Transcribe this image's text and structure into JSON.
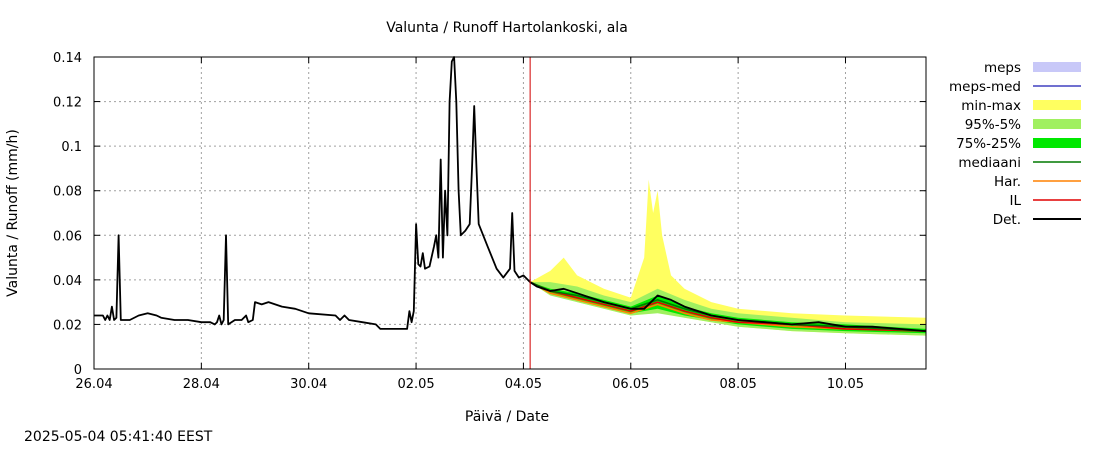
{
  "chart_data": {
    "type": "line",
    "title": "Valunta / Runoff  Hartolankoski, ala",
    "xlabel": "Päivä / Date",
    "ylabel": "Valunta / Runoff (mm/h)",
    "xlim": [
      "2025-04-26T00:00",
      "2025-05-11T12:00"
    ],
    "ylim": [
      0,
      0.14
    ],
    "grid": true,
    "legend_position": "right",
    "x_tick_labels": [
      "26.04",
      "28.04",
      "30.04",
      "02.05",
      "04.05",
      "06.05",
      "08.05",
      "10.05"
    ],
    "x_ticks": [
      "2025-04-26T00:00",
      "2025-04-28T00:00",
      "2025-04-30T00:00",
      "2025-05-02T00:00",
      "2025-05-04T00:00",
      "2025-05-06T00:00",
      "2025-05-08T00:00",
      "2025-05-10T00:00"
    ],
    "y_tick_labels": [
      "0",
      "0.02",
      "0.04",
      "0.06",
      "0.08",
      "0.1",
      "0.12",
      "0.14"
    ],
    "y_ticks": [
      0,
      0.02,
      0.04,
      0.06,
      0.08,
      0.1,
      0.12,
      0.14
    ],
    "forecast_start": "2025-05-04T03:00",
    "legend": [
      {
        "label": "meps",
        "style": "band",
        "color": "#c8c8f8"
      },
      {
        "label": "meps-med",
        "style": "line",
        "color": "#4040c0"
      },
      {
        "label": "min-max",
        "style": "band",
        "color": "#ffff60"
      },
      {
        "label": "95%-5%",
        "style": "band",
        "color": "#a0f060"
      },
      {
        "label": "75%-25%",
        "style": "band",
        "color": "#00e800"
      },
      {
        "label": "mediaani",
        "style": "line",
        "color": "#007800"
      },
      {
        "label": "Har.",
        "style": "line",
        "color": "#ff8000"
      },
      {
        "label": "IL",
        "style": "line",
        "color": "#e00000"
      },
      {
        "label": "Det.",
        "style": "line",
        "color": "#000000"
      }
    ],
    "series": [
      {
        "name": "Det.",
        "color": "#000000",
        "points": [
          [
            "2025-04-26T00:00",
            0.024
          ],
          [
            "2025-04-26T04:00",
            0.024
          ],
          [
            "2025-04-26T05:00",
            0.022
          ],
          [
            "2025-04-26T06:00",
            0.024
          ],
          [
            "2025-04-26T07:00",
            0.022
          ],
          [
            "2025-04-26T08:00",
            0.028
          ],
          [
            "2025-04-26T09:00",
            0.022
          ],
          [
            "2025-04-26T10:00",
            0.023
          ],
          [
            "2025-04-26T11:00",
            0.06
          ],
          [
            "2025-04-26T12:00",
            0.022
          ],
          [
            "2025-04-26T16:00",
            0.022
          ],
          [
            "2025-04-26T20:00",
            0.024
          ],
          [
            "2025-04-27T00:00",
            0.025
          ],
          [
            "2025-04-27T04:00",
            0.024
          ],
          [
            "2025-04-27T06:00",
            0.023
          ],
          [
            "2025-04-27T12:00",
            0.022
          ],
          [
            "2025-04-27T18:00",
            0.022
          ],
          [
            "2025-04-28T00:00",
            0.021
          ],
          [
            "2025-04-28T04:00",
            0.021
          ],
          [
            "2025-04-28T06:00",
            0.02
          ],
          [
            "2025-04-28T07:00",
            0.021
          ],
          [
            "2025-04-28T08:00",
            0.024
          ],
          [
            "2025-04-28T09:00",
            0.02
          ],
          [
            "2025-04-28T10:00",
            0.022
          ],
          [
            "2025-04-28T11:00",
            0.06
          ],
          [
            "2025-04-28T12:00",
            0.02
          ],
          [
            "2025-04-28T15:00",
            0.022
          ],
          [
            "2025-04-28T18:00",
            0.022
          ],
          [
            "2025-04-28T20:00",
            0.024
          ],
          [
            "2025-04-28T21:00",
            0.021
          ],
          [
            "2025-04-28T23:00",
            0.022
          ],
          [
            "2025-04-29T00:00",
            0.03
          ],
          [
            "2025-04-29T03:00",
            0.029
          ],
          [
            "2025-04-29T06:00",
            0.03
          ],
          [
            "2025-04-29T12:00",
            0.028
          ],
          [
            "2025-04-29T18:00",
            0.027
          ],
          [
            "2025-04-30T00:00",
            0.025
          ],
          [
            "2025-04-30T12:00",
            0.024
          ],
          [
            "2025-04-30T14:00",
            0.022
          ],
          [
            "2025-04-30T16:00",
            0.024
          ],
          [
            "2025-04-30T18:00",
            0.022
          ],
          [
            "2025-05-01T00:00",
            0.021
          ],
          [
            "2025-05-01T06:00",
            0.02
          ],
          [
            "2025-05-01T08:00",
            0.018
          ],
          [
            "2025-05-01T12:00",
            0.018
          ],
          [
            "2025-05-01T20:00",
            0.018
          ],
          [
            "2025-05-01T21:00",
            0.026
          ],
          [
            "2025-05-01T22:00",
            0.021
          ],
          [
            "2025-05-01T23:00",
            0.026
          ],
          [
            "2025-05-02T00:00",
            0.065
          ],
          [
            "2025-05-02T01:00",
            0.047
          ],
          [
            "2025-05-02T02:00",
            0.046
          ],
          [
            "2025-05-02T03:00",
            0.052
          ],
          [
            "2025-05-02T04:00",
            0.045
          ],
          [
            "2025-05-02T06:00",
            0.046
          ],
          [
            "2025-05-02T08:00",
            0.055
          ],
          [
            "2025-05-02T09:00",
            0.06
          ],
          [
            "2025-05-02T10:00",
            0.05
          ],
          [
            "2025-05-02T11:00",
            0.094
          ],
          [
            "2025-05-02T12:00",
            0.05
          ],
          [
            "2025-05-02T13:00",
            0.08
          ],
          [
            "2025-05-02T14:00",
            0.06
          ],
          [
            "2025-05-02T15:00",
            0.12
          ],
          [
            "2025-05-02T16:00",
            0.138
          ],
          [
            "2025-05-02T17:00",
            0.14
          ],
          [
            "2025-05-02T18:00",
            0.12
          ],
          [
            "2025-05-02T19:00",
            0.08
          ],
          [
            "2025-05-02T20:00",
            0.06
          ],
          [
            "2025-05-02T22:00",
            0.062
          ],
          [
            "2025-05-03T00:00",
            0.065
          ],
          [
            "2025-05-03T01:00",
            0.09
          ],
          [
            "2025-05-03T02:00",
            0.118
          ],
          [
            "2025-05-03T03:00",
            0.09
          ],
          [
            "2025-05-03T04:00",
            0.065
          ],
          [
            "2025-05-03T08:00",
            0.055
          ],
          [
            "2025-05-03T12:00",
            0.045
          ],
          [
            "2025-05-03T15:00",
            0.041
          ],
          [
            "2025-05-03T18:00",
            0.045
          ],
          [
            "2025-05-03T19:00",
            0.07
          ],
          [
            "2025-05-03T20:00",
            0.044
          ],
          [
            "2025-05-03T22:00",
            0.041
          ],
          [
            "2025-05-04T00:00",
            0.042
          ],
          [
            "2025-05-04T03:00",
            0.039
          ],
          [
            "2025-05-04T06:00",
            0.037
          ],
          [
            "2025-05-04T12:00",
            0.035
          ],
          [
            "2025-05-04T18:00",
            0.036
          ],
          [
            "2025-05-05T00:00",
            0.034
          ],
          [
            "2025-05-05T12:00",
            0.03
          ],
          [
            "2025-05-06T00:00",
            0.027
          ],
          [
            "2025-05-06T06:00",
            0.027
          ],
          [
            "2025-05-06T12:00",
            0.033
          ],
          [
            "2025-05-06T18:00",
            0.031
          ],
          [
            "2025-05-07T00:00",
            0.028
          ],
          [
            "2025-05-07T12:00",
            0.024
          ],
          [
            "2025-05-08T00:00",
            0.022
          ],
          [
            "2025-05-08T12:00",
            0.021
          ],
          [
            "2025-05-09T00:00",
            0.02
          ],
          [
            "2025-05-09T12:00",
            0.021
          ],
          [
            "2025-05-10T00:00",
            0.019
          ],
          [
            "2025-05-10T12:00",
            0.019
          ],
          [
            "2025-05-11T00:00",
            0.018
          ],
          [
            "2025-05-11T12:00",
            0.017
          ]
        ]
      },
      {
        "name": "Har.",
        "color": "#ff8000",
        "points": [
          [
            "2025-05-04T03:00",
            0.039
          ],
          [
            "2025-05-04T12:00",
            0.034
          ],
          [
            "2025-05-05T00:00",
            0.031
          ],
          [
            "2025-05-05T12:00",
            0.028
          ],
          [
            "2025-05-06T00:00",
            0.025
          ],
          [
            "2025-05-06T12:00",
            0.029
          ],
          [
            "2025-05-07T00:00",
            0.025
          ],
          [
            "2025-05-07T12:00",
            0.022
          ],
          [
            "2025-05-08T00:00",
            0.021
          ],
          [
            "2025-05-09T00:00",
            0.019
          ],
          [
            "2025-05-10T00:00",
            0.018
          ],
          [
            "2025-05-11T12:00",
            0.017
          ]
        ]
      },
      {
        "name": "IL",
        "color": "#e00000",
        "points": [
          [
            "2025-05-04T03:00",
            0.039
          ],
          [
            "2025-05-04T12:00",
            0.035
          ],
          [
            "2025-05-05T00:00",
            0.032
          ],
          [
            "2025-05-05T12:00",
            0.029
          ],
          [
            "2025-05-06T00:00",
            0.026
          ],
          [
            "2025-05-06T12:00",
            0.03
          ],
          [
            "2025-05-07T00:00",
            0.026
          ],
          [
            "2025-05-07T12:00",
            0.023
          ],
          [
            "2025-05-08T00:00",
            0.021
          ],
          [
            "2025-05-09T00:00",
            0.02
          ],
          [
            "2025-05-10T00:00",
            0.018
          ],
          [
            "2025-05-11T12:00",
            0.017
          ]
        ]
      },
      {
        "name": "mediaani",
        "color": "#007800",
        "points": [
          [
            "2025-05-04T03:00",
            0.039
          ],
          [
            "2025-05-04T12:00",
            0.035
          ],
          [
            "2025-05-05T00:00",
            0.033
          ],
          [
            "2025-05-05T12:00",
            0.03
          ],
          [
            "2025-05-06T00:00",
            0.027
          ],
          [
            "2025-05-06T12:00",
            0.031
          ],
          [
            "2025-05-07T00:00",
            0.027
          ],
          [
            "2025-05-07T12:00",
            0.024
          ],
          [
            "2025-05-08T00:00",
            0.022
          ],
          [
            "2025-05-09T00:00",
            0.02
          ],
          [
            "2025-05-10T00:00",
            0.019
          ],
          [
            "2025-05-11T12:00",
            0.017
          ]
        ]
      }
    ],
    "bands": [
      {
        "name": "min-max",
        "color": "#ffff60",
        "points": [
          [
            "2025-05-04T03:00",
            0.039,
            0.039
          ],
          [
            "2025-05-04T12:00",
            0.044,
            0.033
          ],
          [
            "2025-05-04T18:00",
            0.05,
            0.033
          ],
          [
            "2025-05-05T00:00",
            0.042,
            0.03
          ],
          [
            "2025-05-05T12:00",
            0.036,
            0.027
          ],
          [
            "2025-05-06T00:00",
            0.032,
            0.024
          ],
          [
            "2025-05-06T06:00",
            0.05,
            0.025
          ],
          [
            "2025-05-06T08:00",
            0.085,
            0.026
          ],
          [
            "2025-05-06T10:00",
            0.07,
            0.027
          ],
          [
            "2025-05-06T12:00",
            0.08,
            0.027
          ],
          [
            "2025-05-06T14:00",
            0.06,
            0.026
          ],
          [
            "2025-05-06T18:00",
            0.042,
            0.025
          ],
          [
            "2025-05-07T00:00",
            0.036,
            0.023
          ],
          [
            "2025-05-07T12:00",
            0.03,
            0.021
          ],
          [
            "2025-05-08T00:00",
            0.027,
            0.019
          ],
          [
            "2025-05-09T00:00",
            0.025,
            0.017
          ],
          [
            "2025-05-10T00:00",
            0.024,
            0.016
          ],
          [
            "2025-05-11T12:00",
            0.023,
            0.015
          ]
        ]
      },
      {
        "name": "95%-5%",
        "color": "#a0f060",
        "points": [
          [
            "2025-05-04T03:00",
            0.039,
            0.039
          ],
          [
            "2025-05-04T12:00",
            0.039,
            0.033
          ],
          [
            "2025-05-05T00:00",
            0.037,
            0.03
          ],
          [
            "2025-05-05T12:00",
            0.033,
            0.027
          ],
          [
            "2025-05-06T00:00",
            0.03,
            0.024
          ],
          [
            "2025-05-06T12:00",
            0.036,
            0.025
          ],
          [
            "2025-05-07T00:00",
            0.031,
            0.023
          ],
          [
            "2025-05-07T12:00",
            0.027,
            0.021
          ],
          [
            "2025-05-08T00:00",
            0.025,
            0.019
          ],
          [
            "2025-05-09T00:00",
            0.023,
            0.017
          ],
          [
            "2025-05-10T00:00",
            0.021,
            0.016
          ],
          [
            "2025-05-11T12:00",
            0.02,
            0.015
          ]
        ]
      },
      {
        "name": "75%-25%",
        "color": "#00e800",
        "points": [
          [
            "2025-05-04T03:00",
            0.039,
            0.039
          ],
          [
            "2025-05-04T12:00",
            0.036,
            0.034
          ],
          [
            "2025-05-05T00:00",
            0.034,
            0.031
          ],
          [
            "2025-05-05T12:00",
            0.031,
            0.028
          ],
          [
            "2025-05-06T00:00",
            0.028,
            0.025
          ],
          [
            "2025-05-06T12:00",
            0.033,
            0.027
          ],
          [
            "2025-05-07T00:00",
            0.028,
            0.024
          ],
          [
            "2025-05-07T12:00",
            0.025,
            0.022
          ],
          [
            "2025-05-08T00:00",
            0.023,
            0.02
          ],
          [
            "2025-05-09T00:00",
            0.021,
            0.018
          ],
          [
            "2025-05-10T00:00",
            0.02,
            0.017
          ],
          [
            "2025-05-11T12:00",
            0.018,
            0.016
          ]
        ]
      }
    ]
  },
  "footer": {
    "timestamp": "2025-05-04 05:41:40 EEST"
  }
}
